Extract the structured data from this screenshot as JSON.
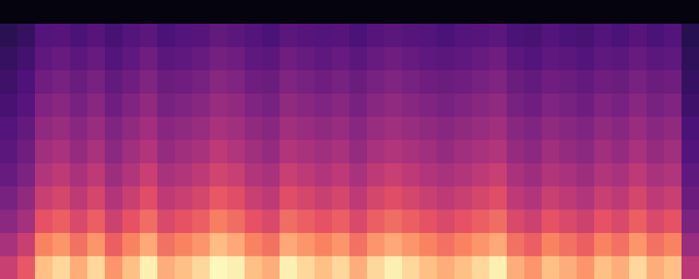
{
  "chart_data": {
    "type": "heatmap",
    "tick_labels": false,
    "zlim": [
      0,
      1
    ],
    "z": [
      [
        0.55,
        0.64,
        0.87,
        0.92,
        0.83,
        0.92,
        0.78,
        0.87,
        0.97,
        0.83,
        0.87,
        0.92,
        0.99,
        0.97,
        0.87,
        0.83,
        0.97,
        0.92,
        0.87,
        0.92,
        0.83,
        0.92,
        0.97,
        0.92,
        0.87,
        0.83,
        0.87,
        0.92,
        0.97,
        0.83,
        0.78,
        0.87,
        0.83,
        0.78,
        0.87,
        0.83,
        0.92,
        0.83,
        0.87,
        0.51
      ],
      [
        0.47,
        0.55,
        0.74,
        0.78,
        0.7,
        0.78,
        0.66,
        0.74,
        0.82,
        0.7,
        0.74,
        0.78,
        0.86,
        0.82,
        0.74,
        0.7,
        0.82,
        0.78,
        0.74,
        0.78,
        0.7,
        0.78,
        0.82,
        0.78,
        0.74,
        0.7,
        0.74,
        0.78,
        0.82,
        0.7,
        0.66,
        0.74,
        0.7,
        0.66,
        0.74,
        0.7,
        0.78,
        0.7,
        0.74,
        0.43
      ],
      [
        0.4,
        0.46,
        0.63,
        0.66,
        0.59,
        0.66,
        0.56,
        0.63,
        0.69,
        0.59,
        0.63,
        0.66,
        0.73,
        0.69,
        0.63,
        0.59,
        0.69,
        0.66,
        0.63,
        0.66,
        0.59,
        0.66,
        0.69,
        0.66,
        0.63,
        0.59,
        0.63,
        0.66,
        0.69,
        0.59,
        0.56,
        0.63,
        0.59,
        0.56,
        0.63,
        0.59,
        0.66,
        0.59,
        0.63,
        0.36
      ],
      [
        0.35,
        0.41,
        0.55,
        0.58,
        0.52,
        0.58,
        0.49,
        0.55,
        0.61,
        0.52,
        0.55,
        0.58,
        0.64,
        0.61,
        0.55,
        0.52,
        0.61,
        0.58,
        0.55,
        0.58,
        0.52,
        0.58,
        0.61,
        0.58,
        0.55,
        0.52,
        0.55,
        0.58,
        0.61,
        0.52,
        0.49,
        0.55,
        0.52,
        0.49,
        0.55,
        0.52,
        0.58,
        0.52,
        0.55,
        0.32
      ],
      [
        0.31,
        0.36,
        0.49,
        0.52,
        0.47,
        0.52,
        0.44,
        0.49,
        0.55,
        0.47,
        0.49,
        0.52,
        0.57,
        0.55,
        0.49,
        0.47,
        0.55,
        0.52,
        0.49,
        0.52,
        0.47,
        0.52,
        0.55,
        0.52,
        0.49,
        0.47,
        0.49,
        0.52,
        0.55,
        0.47,
        0.44,
        0.49,
        0.47,
        0.44,
        0.49,
        0.47,
        0.52,
        0.47,
        0.49,
        0.29
      ],
      [
        0.28,
        0.33,
        0.45,
        0.47,
        0.42,
        0.47,
        0.4,
        0.45,
        0.49,
        0.42,
        0.45,
        0.47,
        0.52,
        0.49,
        0.45,
        0.42,
        0.49,
        0.47,
        0.45,
        0.47,
        0.42,
        0.47,
        0.49,
        0.47,
        0.45,
        0.42,
        0.45,
        0.47,
        0.49,
        0.42,
        0.4,
        0.45,
        0.42,
        0.4,
        0.45,
        0.42,
        0.47,
        0.42,
        0.45,
        0.26
      ],
      [
        0.26,
        0.3,
        0.41,
        0.43,
        0.39,
        0.43,
        0.37,
        0.41,
        0.45,
        0.39,
        0.41,
        0.43,
        0.47,
        0.45,
        0.41,
        0.39,
        0.45,
        0.43,
        0.41,
        0.43,
        0.39,
        0.43,
        0.45,
        0.43,
        0.41,
        0.39,
        0.41,
        0.43,
        0.45,
        0.39,
        0.37,
        0.41,
        0.39,
        0.37,
        0.41,
        0.39,
        0.43,
        0.39,
        0.41,
        0.24
      ],
      [
        0.23,
        0.27,
        0.37,
        0.39,
        0.35,
        0.39,
        0.33,
        0.37,
        0.41,
        0.35,
        0.37,
        0.39,
        0.43,
        0.41,
        0.37,
        0.35,
        0.41,
        0.39,
        0.37,
        0.39,
        0.35,
        0.39,
        0.41,
        0.39,
        0.37,
        0.35,
        0.37,
        0.39,
        0.41,
        0.35,
        0.33,
        0.37,
        0.35,
        0.33,
        0.37,
        0.35,
        0.39,
        0.35,
        0.37,
        0.21
      ],
      [
        0.21,
        0.25,
        0.33,
        0.35,
        0.32,
        0.35,
        0.3,
        0.33,
        0.37,
        0.32,
        0.33,
        0.35,
        0.39,
        0.37,
        0.33,
        0.32,
        0.37,
        0.35,
        0.33,
        0.35,
        0.32,
        0.35,
        0.37,
        0.35,
        0.33,
        0.32,
        0.33,
        0.35,
        0.37,
        0.32,
        0.3,
        0.33,
        0.32,
        0.3,
        0.33,
        0.32,
        0.35,
        0.32,
        0.33,
        0.19
      ],
      [
        0.19,
        0.22,
        0.29,
        0.31,
        0.28,
        0.31,
        0.26,
        0.29,
        0.33,
        0.28,
        0.29,
        0.31,
        0.34,
        0.33,
        0.29,
        0.28,
        0.33,
        0.31,
        0.29,
        0.31,
        0.28,
        0.31,
        0.33,
        0.31,
        0.29,
        0.28,
        0.29,
        0.31,
        0.33,
        0.28,
        0.26,
        0.29,
        0.28,
        0.26,
        0.29,
        0.28,
        0.31,
        0.28,
        0.29,
        0.17
      ],
      [
        0.16,
        0.19,
        0.26,
        0.27,
        0.24,
        0.27,
        0.23,
        0.26,
        0.28,
        0.24,
        0.26,
        0.27,
        0.3,
        0.28,
        0.26,
        0.24,
        0.28,
        0.27,
        0.26,
        0.27,
        0.24,
        0.27,
        0.28,
        0.27,
        0.26,
        0.24,
        0.26,
        0.27,
        0.28,
        0.24,
        0.23,
        0.26,
        0.24,
        0.23,
        0.26,
        0.24,
        0.27,
        0.24,
        0.26,
        0.15
      ],
      [
        0.02,
        0.02,
        0.02,
        0.02,
        0.02,
        0.02,
        0.02,
        0.02,
        0.02,
        0.02,
        0.02,
        0.02,
        0.02,
        0.02,
        0.02,
        0.02,
        0.02,
        0.02,
        0.02,
        0.02,
        0.02,
        0.02,
        0.02,
        0.02,
        0.02,
        0.02,
        0.02,
        0.02,
        0.02,
        0.02,
        0.02,
        0.02,
        0.02,
        0.02,
        0.02,
        0.02,
        0.02,
        0.02,
        0.02,
        0.02
      ]
    ]
  }
}
